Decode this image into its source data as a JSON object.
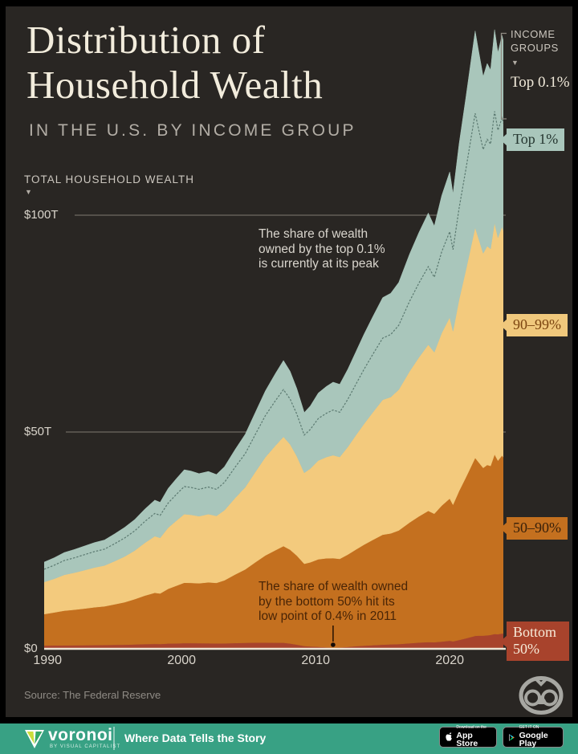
{
  "header": {
    "title_line1": "Distribution of",
    "title_line2": "Household Wealth",
    "subtitle": "IN THE U.S. BY INCOME GROUP"
  },
  "axis": {
    "y_axis_title": "TOTAL HOUSEHOLD WEALTH",
    "y_ticks": [
      {
        "label": "$100T",
        "value": 100
      },
      {
        "label": "$50T",
        "value": 50
      },
      {
        "label": "$0",
        "value": 0
      }
    ],
    "x_ticks": [
      {
        "label": "1990",
        "year": 1990
      },
      {
        "label": "2000",
        "year": 2000
      },
      {
        "label": "2010",
        "year": 2010
      },
      {
        "label": "2020",
        "year": 2020
      }
    ]
  },
  "icons": {
    "caret_down": "▼"
  },
  "legend": {
    "header": "INCOME GROUPS",
    "items": [
      {
        "label": "Top 0.1%",
        "style": "text",
        "fg": "#f0e9d9"
      },
      {
        "label": "Top 1%",
        "style": "badge",
        "bg": "#a9c6bb",
        "fg": "#24352f"
      },
      {
        "label": "90–99%",
        "style": "badge",
        "bg": "#f0c87c",
        "fg": "#7c4510"
      },
      {
        "label": "50–90%",
        "style": "badge",
        "bg": "#c4701f",
        "fg": "#38200a"
      },
      {
        "label": "Bottom 50%",
        "style": "badge",
        "bg": "#a8432c",
        "fg": "#f6ead8"
      }
    ]
  },
  "annotations": {
    "top": {
      "lines": [
        "The share of wealth",
        "owned by the top 0.1%",
        "is currently at its peak"
      ]
    },
    "bottom": {
      "lines": [
        "The share of wealth owned",
        "by the bottom 50% hit its",
        "low point of 0.4% in 2011"
      ],
      "pointer_year": 2011.3
    }
  },
  "source": {
    "text": "Source: The Federal Reserve"
  },
  "footer": {
    "brand": "voronoi",
    "byline": "BY VISUAL CAPITALIST",
    "tagline": "Where Data Tells the Story",
    "app_store": {
      "line1": "Download on the",
      "line2": "App Store"
    },
    "google_play": {
      "line1": "GET IT ON",
      "line2": "Google Play"
    }
  },
  "chart_data": {
    "type": "area",
    "stacked": true,
    "title": "Distribution of Household Wealth in the U.S. by Income Group",
    "ylabel": "Total household wealth (trillion USD)",
    "x_range": [
      1989.75,
      2024.25
    ],
    "y_range": [
      0,
      144
    ],
    "grid": "horizontal",
    "legend_position": "right",
    "years": [
      1989.75,
      1990.5,
      1991.25,
      1992,
      1992.75,
      1993.5,
      1994.25,
      1995,
      1995.75,
      1996.5,
      1997.25,
      1998,
      1998.4,
      1999,
      1999.6,
      2000.2,
      2000.7,
      2001.3,
      2002,
      2002.6,
      2003.2,
      2004,
      2004.75,
      2005.5,
      2006.25,
      2007,
      2007.6,
      2008.1,
      2008.6,
      2009.15,
      2009.6,
      2010.2,
      2010.8,
      2011.3,
      2011.8,
      2012.4,
      2013,
      2013.6,
      2014.25,
      2015,
      2015.6,
      2016.2,
      2017,
      2017.7,
      2018.4,
      2018.85,
      2019.4,
      2020,
      2020.25,
      2020.7,
      2021.2,
      2021.9,
      2022.15,
      2022.5,
      2022.8,
      2023.05,
      2023.35,
      2023.6,
      2023.9,
      2024.1,
      2024.25
    ],
    "series": [
      {
        "name": "Bottom 50%",
        "color": "#a8432c",
        "values": [
          0.74,
          0.78,
          0.8,
          0.82,
          0.83,
          0.86,
          0.88,
          0.93,
          0.95,
          1.01,
          1.09,
          1.13,
          1.12,
          1.22,
          1.25,
          1.32,
          1.31,
          1.29,
          1.27,
          1.25,
          1.26,
          1.33,
          1.39,
          1.42,
          1.43,
          1.4,
          1.4,
          1.22,
          0.96,
          0.65,
          0.56,
          0.47,
          0.36,
          0.25,
          0.31,
          0.45,
          0.62,
          0.73,
          0.84,
          0.97,
          1.03,
          1.1,
          1.27,
          1.44,
          1.56,
          1.51,
          1.67,
          1.87,
          1.73,
          2.04,
          2.41,
          2.99,
          3.03,
          3.04,
          3.11,
          3.2,
          3.43,
          3.37,
          3.54,
          3.48,
          3.51
        ]
      },
      {
        "name": "50–90%",
        "color": "#c4701f",
        "values": [
          7.26,
          7.6,
          7.99,
          8.2,
          8.44,
          8.72,
          8.91,
          9.33,
          9.8,
          10.43,
          11.17,
          11.8,
          11.63,
          12.62,
          13.29,
          13.92,
          13.9,
          13.82,
          14.07,
          13.95,
          14.53,
          15.82,
          16.93,
          18.53,
          20.11,
          21.34,
          22.28,
          21.63,
          20.52,
          18.97,
          19.38,
          20.18,
          20.51,
          20.66,
          20.44,
          21.29,
          22.26,
          23.27,
          24.25,
          25.35,
          25.58,
          26.2,
          27.85,
          29.09,
          30.25,
          29.64,
          31.35,
          32.78,
          31.5,
          34.37,
          37.08,
          41.04,
          40.02,
          38.68,
          39.29,
          38.98,
          41.41,
          40.01,
          41.04,
          40.31,
          40.75
        ]
      },
      {
        "name": "90–99%",
        "color": "#f3ca7d",
        "values": [
          7.4,
          7.77,
          8.26,
          8.54,
          8.86,
          9.16,
          9.41,
          9.94,
          10.53,
          11.2,
          12.17,
          13.03,
          12.84,
          14.1,
          14.97,
          15.82,
          15.7,
          15.47,
          15.71,
          15.44,
          16.17,
          17.66,
          18.96,
          20.82,
          22.67,
          24.13,
          25.2,
          24.32,
          22.92,
          20.98,
          21.62,
          22.77,
          23.35,
          23.74,
          23.49,
          24.83,
          26.37,
          27.84,
          29.38,
          31.1,
          31.45,
          32.45,
          34.85,
          36.67,
          38.34,
          37.25,
          39.81,
          41.8,
          40.01,
          44.15,
          47.75,
          53.15,
          51.61,
          49.5,
          50.49,
          50.06,
          53.41,
          51.43,
          52.78,
          51.85,
          52.41
        ]
      },
      {
        "name": "Top 1%",
        "color": "#a9c6bb",
        "values": [
          4.6,
          4.85,
          5.15,
          5.34,
          5.57,
          5.76,
          5.9,
          6.3,
          6.72,
          7.16,
          7.77,
          8.34,
          8.21,
          9.06,
          9.69,
          10.24,
          10.09,
          9.82,
          9.85,
          9.56,
          10.04,
          11.19,
          12.22,
          13.73,
          15.29,
          16.63,
          17.62,
          16.83,
          15.6,
          13.9,
          14.44,
          15.58,
          16.28,
          16.85,
          16.76,
          17.93,
          19.25,
          20.66,
          22.03,
          23.58,
          23.94,
          24.75,
          27.03,
          28.8,
          30.35,
          29.1,
          31.67,
          33.55,
          31.76,
          35.94,
          39.76,
          45.32,
          43.34,
          40.78,
          42.11,
          41.26,
          44.55,
          42.69,
          44.14,
          43.36,
          43.83
        ]
      }
    ],
    "top01_line": {
      "name": "Top 0.1%",
      "color": "#5c7a71",
      "values": [
        1.65,
        1.73,
        1.84,
        1.91,
        2.0,
        2.07,
        2.12,
        2.28,
        2.44,
        2.61,
        2.85,
        3.08,
        3.02,
        3.37,
        3.63,
        3.88,
        3.78,
        3.62,
        3.58,
        3.43,
        3.62,
        4.08,
        4.49,
        5.08,
        5.71,
        6.27,
        6.72,
        6.4,
        5.89,
        5.2,
        5.41,
        5.88,
        6.18,
        6.43,
        6.44,
        6.94,
        7.5,
        8.1,
        8.68,
        9.35,
        9.52,
        9.89,
        10.88,
        11.66,
        12.37,
        11.8,
        12.95,
        13.8,
        12.95,
        14.85,
        16.55,
        19.0,
        18.1,
        16.85,
        17.5,
        17.1,
        18.85,
        17.9,
        19.05,
        18.6,
        19.25
      ]
    }
  }
}
